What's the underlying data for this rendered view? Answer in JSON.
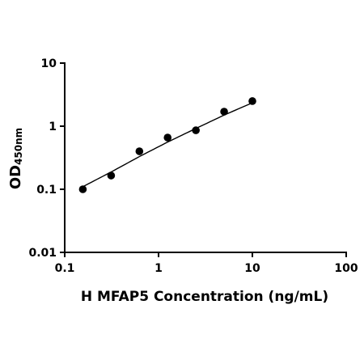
{
  "chart_data": {
    "type": "scatter",
    "xscale": "log",
    "yscale": "log",
    "xlim": [
      0.1,
      100
    ],
    "ylim": [
      0.01,
      10
    ],
    "x_ticks": [
      0.1,
      1,
      10,
      100
    ],
    "y_ticks": [
      0.01,
      0.1,
      1,
      10
    ],
    "x_tick_labels": [
      "0.1",
      "1",
      "10",
      "100"
    ],
    "y_tick_labels": [
      "0.01",
      "0.1",
      "1",
      "10"
    ],
    "xlabel": "H MFAP5 Concentration (ng/mL)",
    "ylabel_main": "OD",
    "ylabel_sub": "450nm",
    "grid": false,
    "legend": "none",
    "series": [
      {
        "x": [
          0.156,
          0.3125,
          0.625,
          1.25,
          2.5,
          5,
          10
        ],
        "y": [
          0.1,
          0.165,
          0.4,
          0.66,
          0.86,
          1.7,
          2.5
        ]
      }
    ],
    "fit_line": {
      "x": [
        0.156,
        0.3125,
        0.625,
        1.25,
        2.5,
        5,
        10
      ],
      "y": [
        0.11,
        0.188,
        0.33,
        0.56,
        0.92,
        1.5,
        2.35
      ]
    },
    "colors": {
      "axis": "#000000",
      "points": "#000000",
      "fit": "#000000"
    }
  }
}
